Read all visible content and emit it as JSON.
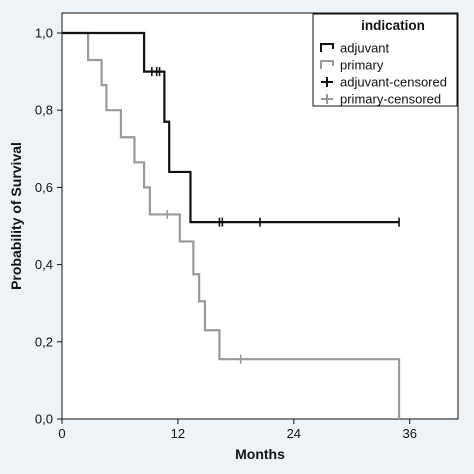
{
  "chart_data": {
    "type": "line",
    "subtype": "kaplan-meier step",
    "xlabel": "Months",
    "ylabel": "Probability of Survival",
    "xlim": [
      0,
      41
    ],
    "ylim": [
      0,
      1.02
    ],
    "x_ticks": [
      0,
      12,
      24,
      36
    ],
    "y_ticks": [
      0.0,
      0.2,
      0.4,
      0.6,
      0.8,
      1.0
    ],
    "y_tick_labels": [
      "0,0",
      "0,2",
      "0,4",
      "0,6",
      "0,8",
      "1,0"
    ],
    "grid": false,
    "legend_position": "top-right",
    "legend_title": "indication",
    "legend": [
      {
        "label": "adjuvant",
        "color": "#111111",
        "symbol": "step"
      },
      {
        "label": "primary",
        "color": "#999999",
        "symbol": "step"
      },
      {
        "label": "adjuvant-censored",
        "color": "#111111",
        "symbol": "cross"
      },
      {
        "label": "primary-censored",
        "color": "#999999",
        "symbol": "cross"
      }
    ],
    "series": [
      {
        "name": "adjuvant",
        "color": "#111111",
        "steps": [
          [
            0,
            1.0
          ],
          [
            8.5,
            0.9
          ],
          [
            10.6,
            0.77
          ],
          [
            11.1,
            0.64
          ],
          [
            13.3,
            0.51
          ],
          [
            34.9,
            0.51
          ]
        ],
        "censored": [
          [
            9.3,
            0.9
          ],
          [
            9.8,
            0.9
          ],
          [
            10.1,
            0.9
          ],
          [
            16.3,
            0.51
          ],
          [
            16.6,
            0.51
          ],
          [
            20.5,
            0.51
          ],
          [
            34.9,
            0.51
          ]
        ]
      },
      {
        "name": "primary",
        "color": "#999999",
        "steps": [
          [
            0,
            1.0
          ],
          [
            2.7,
            0.93
          ],
          [
            4.1,
            0.865
          ],
          [
            4.6,
            0.8
          ],
          [
            6.1,
            0.73
          ],
          [
            7.5,
            0.665
          ],
          [
            8.5,
            0.6
          ],
          [
            9.1,
            0.53
          ],
          [
            12.2,
            0.46
          ],
          [
            13.6,
            0.375
          ],
          [
            14.2,
            0.305
          ],
          [
            14.8,
            0.23
          ],
          [
            16.3,
            0.155
          ],
          [
            34.9,
            0.155
          ],
          [
            34.9,
            0.0
          ]
        ],
        "censored": [
          [
            10.9,
            0.53
          ],
          [
            18.5,
            0.155
          ]
        ]
      }
    ]
  }
}
